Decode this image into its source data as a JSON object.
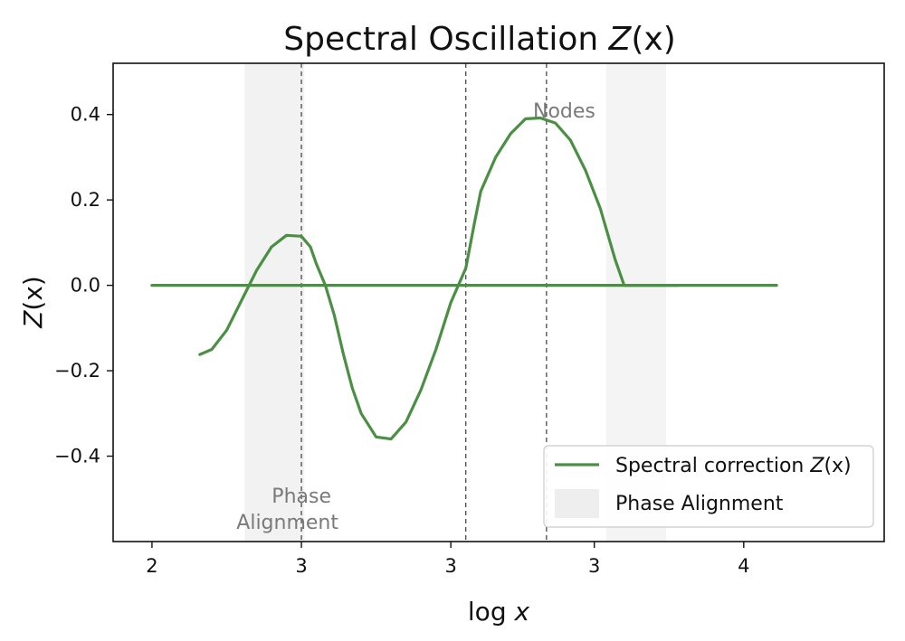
{
  "chart_data": {
    "type": "line",
    "title_prefix": "Spectral Oscillation ",
    "title_math": "Z",
    "title_math_arg": "(x)",
    "xlabel_prefix": "log ",
    "xlabel_math": "x",
    "ylabel_math": "Z",
    "ylabel_arg": "(x)",
    "xlim": [
      1.87,
      4.45
    ],
    "ylim": [
      -0.6,
      0.52
    ],
    "x_ticks": [
      {
        "value": 2.0,
        "label": "2"
      },
      {
        "value": 2.5,
        "label": "3"
      },
      {
        "value": 3.0,
        "label": "3"
      },
      {
        "value": 3.48,
        "label": "3"
      },
      {
        "value": 3.98,
        "label": "4"
      }
    ],
    "y_ticks": [
      {
        "value": 0.4,
        "label": "0.4"
      },
      {
        "value": 0.2,
        "label": "0.2"
      },
      {
        "value": 0.0,
        "label": "0.0"
      },
      {
        "value": -0.2,
        "label": "−0.2"
      },
      {
        "value": -0.4,
        "label": "−0.4"
      }
    ],
    "series": [
      {
        "name": "Spectral correction Z(x)",
        "color": "#4a8f43",
        "x": [
          2.16,
          2.2,
          2.25,
          2.3,
          2.35,
          2.4,
          2.45,
          2.5,
          2.53,
          2.55,
          2.58,
          2.61,
          2.64,
          2.67,
          2.7,
          2.75,
          2.8,
          2.85,
          2.9,
          2.95,
          3.0,
          3.05,
          3.08,
          3.1,
          3.15,
          3.2,
          3.25,
          3.3,
          3.35,
          3.4,
          3.45,
          3.5,
          3.55,
          3.58,
          3.6,
          3.65,
          3.7,
          3.74,
          3.76
        ],
        "y": [
          -0.162,
          -0.15,
          -0.105,
          -0.035,
          0.035,
          0.09,
          0.117,
          0.115,
          0.09,
          0.05,
          0.0,
          -0.07,
          -0.16,
          -0.24,
          -0.3,
          -0.355,
          -0.36,
          -0.32,
          -0.245,
          -0.15,
          -0.04,
          0.04,
          0.15,
          0.22,
          0.3,
          0.355,
          0.39,
          0.392,
          0.38,
          0.34,
          0.27,
          0.18,
          0.06,
          0.0,
          0.0,
          0.0,
          0.0,
          0.0,
          0.0
        ]
      },
      {
        "name": "baseline",
        "color": "#4a8f43",
        "x": [
          2.0,
          4.09
        ],
        "y": [
          0.0,
          0.0
        ]
      }
    ],
    "shaded_regions": [
      {
        "label": "Phase Alignment",
        "x_start": 2.31,
        "x_end": 2.51,
        "color": "#f2f2f2"
      },
      {
        "label": "Phase Alignment",
        "x_start": 3.52,
        "x_end": 3.72,
        "color": "#f4f4f4"
      }
    ],
    "vlines": [
      2.5,
      3.05,
      3.32
    ],
    "annotations": {
      "phase_line1": "Phase",
      "phase_line2": "Alignment",
      "nodes": "Nodes"
    },
    "legend": {
      "position": "lower-right",
      "entry1_prefix": "Spectral correction ",
      "entry1_math": "Z",
      "entry1_arg": "(x)",
      "entry2": "Phase Alignment"
    },
    "grid": false,
    "line_color": "#4a8f43",
    "vline_color": "#555555"
  }
}
